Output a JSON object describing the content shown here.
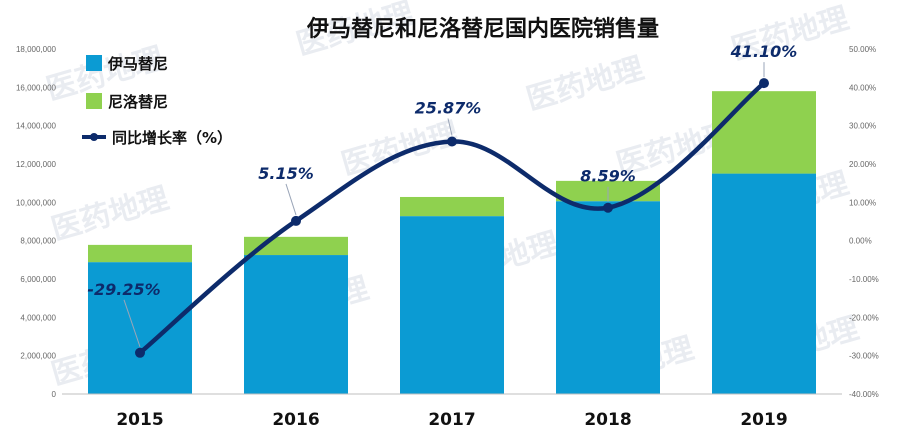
{
  "chart_data": {
    "type": "bar",
    "stacked": true,
    "title": "伊马替尼和尼洛替尼国内医院销售量",
    "categories": [
      "2015",
      "2016",
      "2017",
      "2018",
      "2019"
    ],
    "series": [
      {
        "name": "伊马替尼",
        "kind": "bar",
        "axis": "left",
        "color": "#0b9bd3",
        "values": [
          6880000,
          7250000,
          9280000,
          10060000,
          11500000
        ]
      },
      {
        "name": "尼洛替尼",
        "kind": "bar",
        "axis": "left",
        "color": "#8fd14f",
        "values": [
          900000,
          950000,
          1000000,
          1060000,
          4300000
        ]
      },
      {
        "name": "同比增长率（%）",
        "kind": "line",
        "axis": "right",
        "color": "#0d2b6b",
        "values": [
          -29.25,
          5.15,
          25.87,
          8.59,
          41.1
        ]
      }
    ],
    "data_labels": [
      "-29.25%",
      "5.15%",
      "25.87%",
      "8.59%",
      "41.10%"
    ],
    "y_left": {
      "min": 0,
      "max": 18000000,
      "step": 2000000,
      "tick_labels": [
        "0",
        "2,000,000",
        "4,000,000",
        "6,000,000",
        "8,000,000",
        "10,000,000",
        "12,000,000",
        "14,000,000",
        "16,000,000",
        "18,000,000"
      ]
    },
    "y_right": {
      "min": -40,
      "max": 50,
      "step": 10,
      "tick_labels": [
        "-40.00%",
        "-30.00%",
        "-20.00%",
        "-10.00%",
        "0.00%",
        "10.00%",
        "20.00%",
        "30.00%",
        "40.00%",
        "50.00%"
      ]
    },
    "legend_position": "top-left",
    "grid": false,
    "watermark": "医药地理"
  }
}
